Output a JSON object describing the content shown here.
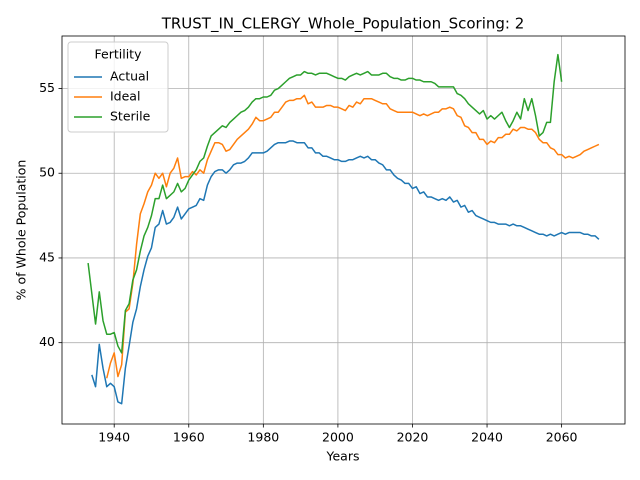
{
  "chart_data": {
    "type": "line",
    "title": "TRUST_IN_CLERGY_Whole_Population_Scoring: 2",
    "xlabel": "Years",
    "ylabel": "% of Whole Population",
    "legend_title": "Fertility",
    "legend": "upper left",
    "grid": true,
    "xlim": [
      1926,
      2077
    ],
    "ylim": [
      35.2,
      58.1
    ],
    "xticks": [
      1940,
      1960,
      1980,
      2000,
      2020,
      2040,
      2060
    ],
    "yticks": [
      40,
      45,
      50,
      55
    ],
    "x": [
      1933,
      1934,
      1935,
      1936,
      1937,
      1938,
      1939,
      1940,
      1941,
      1942,
      1943,
      1944,
      1945,
      1946,
      1947,
      1948,
      1949,
      1950,
      1951,
      1952,
      1953,
      1954,
      1955,
      1956,
      1957,
      1958,
      1959,
      1960,
      1961,
      1962,
      1963,
      1964,
      1965,
      1966,
      1967,
      1968,
      1969,
      1970,
      1971,
      1972,
      1973,
      1974,
      1975,
      1976,
      1977,
      1978,
      1979,
      1980,
      1981,
      1982,
      1983,
      1984,
      1985,
      1986,
      1987,
      1988,
      1989,
      1990,
      1991,
      1992,
      1993,
      1994,
      1995,
      1996,
      1997,
      1998,
      1999,
      2000,
      2001,
      2002,
      2003,
      2004,
      2005,
      2006,
      2007,
      2008,
      2009,
      2010,
      2011,
      2012,
      2013,
      2014,
      2015,
      2016,
      2017,
      2018,
      2019,
      2020,
      2021,
      2022,
      2023,
      2024,
      2025,
      2026,
      2027,
      2028,
      2029,
      2030,
      2031,
      2032,
      2033,
      2034,
      2035,
      2036,
      2037,
      2038,
      2039,
      2040,
      2041,
      2042,
      2043,
      2044,
      2045,
      2046,
      2047,
      2048,
      2049,
      2050,
      2051,
      2052,
      2053,
      2054,
      2055,
      2056,
      2057,
      2058,
      2059,
      2060,
      2061,
      2062,
      2063,
      2064,
      2065,
      2066,
      2067,
      2068,
      2069,
      2070
    ],
    "series": [
      {
        "name": "Actual",
        "color": "#1f77b4",
        "values": [
          null,
          38.1,
          37.4,
          39.9,
          38.5,
          37.4,
          37.6,
          37.4,
          36.5,
          36.4,
          38.5,
          39.8,
          41.2,
          42.0,
          43.3,
          44.3,
          45.1,
          45.6,
          46.8,
          47.0,
          47.8,
          47.0,
          47.1,
          47.4,
          48.0,
          47.3,
          47.6,
          47.9,
          48.0,
          48.1,
          48.5,
          48.4,
          49.3,
          49.8,
          50.1,
          50.2,
          50.2,
          50.0,
          50.2,
          50.5,
          50.6,
          50.6,
          50.7,
          50.9,
          51.2,
          51.2,
          51.2,
          51.2,
          51.3,
          51.5,
          51.7,
          51.8,
          51.8,
          51.8,
          51.9,
          51.9,
          51.8,
          51.8,
          51.8,
          51.5,
          51.5,
          51.2,
          51.2,
          51.0,
          51.0,
          50.9,
          50.8,
          50.8,
          50.7,
          50.7,
          50.8,
          50.8,
          50.9,
          51.0,
          50.9,
          51.0,
          50.8,
          50.8,
          50.6,
          50.5,
          50.2,
          50.2,
          49.9,
          49.7,
          49.6,
          49.4,
          49.4,
          49.1,
          49.2,
          48.8,
          48.9,
          48.6,
          48.6,
          48.5,
          48.4,
          48.5,
          48.4,
          48.6,
          48.3,
          48.4,
          48.0,
          48.1,
          47.7,
          47.8,
          47.5,
          47.4,
          47.3,
          47.2,
          47.1,
          47.1,
          47.0,
          47.0,
          47.0,
          46.9,
          47.0,
          46.9,
          46.9,
          46.8,
          46.7,
          46.6,
          46.5,
          46.4,
          46.4,
          46.3,
          46.4,
          46.3,
          46.4,
          46.5,
          46.4,
          46.5,
          46.5,
          46.5,
          46.5,
          46.4,
          46.4,
          46.3,
          46.3,
          46.1
        ]
      },
      {
        "name": "Ideal",
        "color": "#ff7f0e",
        "values": [
          null,
          null,
          null,
          null,
          null,
          37.9,
          38.8,
          39.4,
          38.0,
          38.7,
          41.8,
          42.0,
          43.5,
          45.8,
          47.6,
          48.2,
          48.9,
          49.3,
          50.0,
          49.7,
          50.0,
          49.2,
          50.0,
          50.3,
          50.9,
          49.7,
          49.8,
          49.8,
          50.1,
          49.9,
          50.2,
          50.0,
          50.8,
          51.3,
          51.8,
          51.8,
          51.7,
          51.3,
          51.4,
          51.7,
          52.0,
          52.2,
          52.4,
          52.6,
          52.9,
          53.3,
          53.1,
          53.1,
          53.2,
          53.3,
          53.6,
          53.6,
          53.9,
          54.2,
          54.3,
          54.3,
          54.4,
          54.4,
          54.6,
          54.1,
          54.2,
          53.9,
          53.9,
          53.9,
          54.0,
          54.0,
          53.9,
          53.9,
          53.8,
          53.7,
          54.0,
          53.9,
          54.2,
          54.1,
          54.4,
          54.4,
          54.4,
          54.3,
          54.2,
          54.1,
          54.1,
          53.8,
          53.7,
          53.6,
          53.6,
          53.6,
          53.6,
          53.6,
          53.5,
          53.4,
          53.5,
          53.4,
          53.5,
          53.6,
          53.6,
          53.8,
          53.8,
          53.9,
          53.8,
          53.4,
          53.3,
          52.8,
          52.7,
          52.4,
          52.4,
          52.0,
          52.0,
          51.7,
          51.9,
          51.8,
          52.1,
          52.1,
          52.3,
          52.3,
          52.6,
          52.5,
          52.7,
          52.7,
          52.6,
          52.6,
          52.4,
          52.0,
          51.8,
          51.8,
          51.5,
          51.4,
          51.1,
          51.1,
          50.9,
          51.0,
          50.9,
          51.0,
          51.1,
          51.3,
          51.4,
          51.5,
          51.6,
          51.7
        ]
      },
      {
        "name": "Sterile",
        "color": "#2ca02c",
        "values": [
          44.7,
          42.9,
          41.1,
          43.0,
          41.3,
          40.5,
          40.5,
          40.6,
          39.8,
          39.4,
          41.9,
          42.3,
          43.7,
          44.3,
          45.4,
          46.3,
          46.8,
          47.5,
          48.5,
          48.5,
          49.3,
          48.5,
          48.7,
          48.9,
          49.4,
          48.9,
          49.1,
          49.6,
          49.9,
          50.2,
          50.7,
          50.9,
          51.6,
          52.2,
          52.4,
          52.6,
          52.8,
          52.7,
          53.0,
          53.2,
          53.4,
          53.6,
          53.7,
          53.9,
          54.2,
          54.4,
          54.4,
          54.5,
          54.5,
          54.6,
          54.9,
          55.0,
          55.2,
          55.4,
          55.6,
          55.7,
          55.8,
          55.8,
          56.0,
          55.9,
          55.9,
          55.8,
          55.9,
          55.9,
          55.9,
          55.8,
          55.7,
          55.6,
          55.6,
          55.5,
          55.7,
          55.8,
          55.9,
          55.8,
          55.9,
          56.0,
          55.8,
          55.8,
          55.8,
          55.9,
          55.9,
          55.7,
          55.6,
          55.6,
          55.5,
          55.5,
          55.6,
          55.6,
          55.5,
          55.5,
          55.4,
          55.4,
          55.4,
          55.3,
          55.1,
          55.1,
          55.1,
          55.1,
          55.1,
          54.7,
          54.6,
          54.4,
          54.1,
          53.9,
          53.7,
          53.5,
          53.7,
          53.2,
          53.4,
          53.2,
          53.4,
          53.6,
          53.1,
          52.7,
          53.1,
          53.6,
          53.2,
          54.4,
          53.7,
          54.4,
          53.4,
          52.2,
          52.4,
          53.0,
          53.0,
          55.4,
          57.0,
          55.4,
          null,
          null,
          null,
          null,
          null,
          null,
          null,
          null,
          null,
          null
        ]
      }
    ]
  }
}
